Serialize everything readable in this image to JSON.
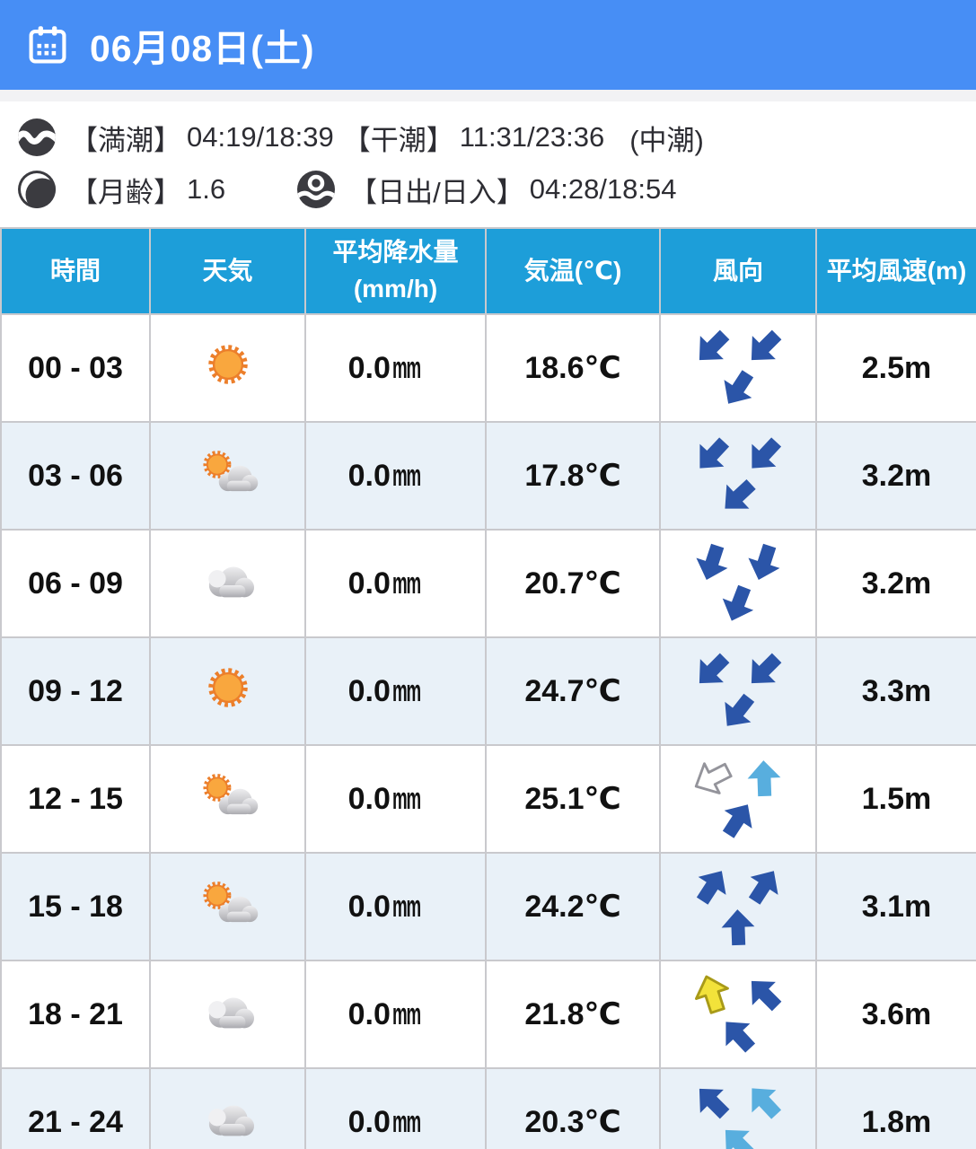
{
  "header": {
    "title": "06月08日(土)"
  },
  "info": {
    "tide": {
      "high_label": "【満潮】",
      "high_value": "04:19/18:39",
      "low_label": "【干潮】",
      "low_value": "11:31/23:36",
      "phase": "(中潮)"
    },
    "moon": {
      "label": "【月齢】",
      "value": "1.6"
    },
    "sun": {
      "label": "【日出/日入】",
      "value": "04:28/18:54"
    }
  },
  "table": {
    "headers": [
      {
        "label": "時間"
      },
      {
        "label": "天気"
      },
      {
        "label": "平均降水量",
        "sub": "(mm/h)"
      },
      {
        "label": "気温(℃)"
      },
      {
        "label": "風向"
      },
      {
        "label": "平均風速(m)"
      }
    ],
    "rows": [
      {
        "time": "00 - 03",
        "weather": "sunny",
        "precip": "0.0",
        "precip_unit": "mm",
        "temp": "18.6℃",
        "speed": "2.5m",
        "wind": [
          {
            "a": 225,
            "c": "dark"
          },
          {
            "a": 225,
            "c": "dark"
          },
          {
            "a": 213,
            "c": "dark"
          }
        ]
      },
      {
        "time": "03 - 06",
        "weather": "partly",
        "precip": "0.0",
        "precip_unit": "mm",
        "temp": "17.8℃",
        "speed": "3.2m",
        "wind": [
          {
            "a": 223,
            "c": "dark"
          },
          {
            "a": 223,
            "c": "dark"
          },
          {
            "a": 227,
            "c": "dark"
          }
        ]
      },
      {
        "time": "06 - 09",
        "weather": "cloudy",
        "precip": "0.0",
        "precip_unit": "mm",
        "temp": "20.7℃",
        "speed": "3.2m",
        "wind": [
          {
            "a": 198,
            "c": "dark"
          },
          {
            "a": 198,
            "c": "dark"
          },
          {
            "a": 201,
            "c": "dark"
          }
        ]
      },
      {
        "time": "09 - 12",
        "weather": "sunny",
        "precip": "0.0",
        "precip_unit": "mm",
        "temp": "24.7℃",
        "speed": "3.3m",
        "wind": [
          {
            "a": 225,
            "c": "dark"
          },
          {
            "a": 225,
            "c": "dark"
          },
          {
            "a": 218,
            "c": "dark"
          }
        ]
      },
      {
        "time": "12 - 15",
        "weather": "partly",
        "precip": "0.0",
        "precip_unit": "mm",
        "temp": "25.1℃",
        "speed": "1.5m",
        "wind": [
          {
            "a": 243,
            "c": "white"
          },
          {
            "a": 358,
            "c": "light"
          },
          {
            "a": 33,
            "c": "dark"
          }
        ]
      },
      {
        "time": "15 - 18",
        "weather": "partly",
        "precip": "0.0",
        "precip_unit": "mm",
        "temp": "24.2℃",
        "speed": "3.1m",
        "wind": [
          {
            "a": 33,
            "c": "dark"
          },
          {
            "a": 33,
            "c": "dark"
          },
          {
            "a": 358,
            "c": "dark"
          }
        ]
      },
      {
        "time": "18 - 21",
        "weather": "cloudy",
        "precip": "0.0",
        "precip_unit": "mm",
        "temp": "21.8℃",
        "speed": "3.6m",
        "wind": [
          {
            "a": 342,
            "c": "yellow"
          },
          {
            "a": 315,
            "c": "dark"
          },
          {
            "a": 317,
            "c": "dark"
          }
        ]
      },
      {
        "time": "21 - 24",
        "weather": "cloudy",
        "precip": "0.0",
        "precip_unit": "mm",
        "temp": "20.3℃",
        "speed": "1.8m",
        "wind": [
          {
            "a": 315,
            "c": "dark"
          },
          {
            "a": 317,
            "c": "light"
          },
          {
            "a": 315,
            "c": "light"
          }
        ]
      }
    ]
  },
  "colors": {
    "header_bg": "#478ef5",
    "table_header_bg": "#1d9ed9",
    "row_alt_bg": "#e9f1f8",
    "grid_line": "#c9c9cd",
    "arrow_dark": "#2b55a8",
    "arrow_light": "#58aede",
    "arrow_yellow": "#f2e23a",
    "arrow_yellow_stroke": "#a89a18",
    "arrow_white": "#ffffff",
    "arrow_white_stroke": "#94949b",
    "sun_core": "#f9a73e",
    "sun_edge": "#ec7f2b",
    "info_icon": "#3b3b40"
  }
}
